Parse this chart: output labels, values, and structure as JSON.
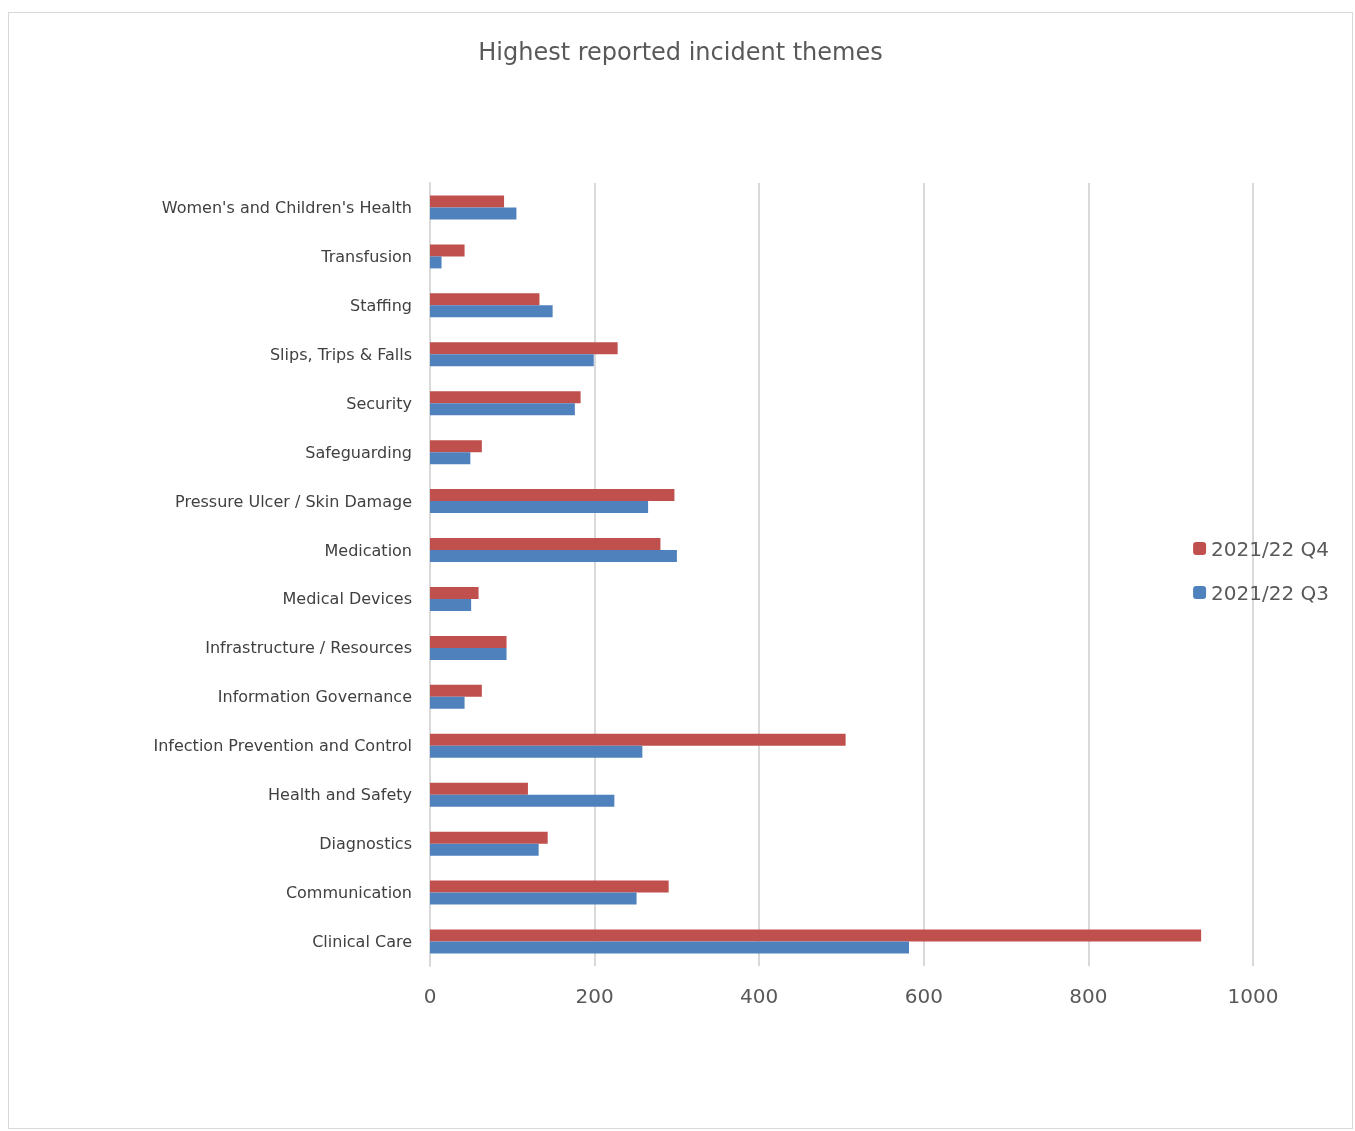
{
  "chart_data": {
    "type": "bar",
    "orientation": "horizontal",
    "title": "Highest reported incident themes",
    "categories": [
      "Women's and Children's Health",
      "Transfusion",
      "Staffing",
      "Slips, Trips & Falls",
      "Security",
      "Safeguarding",
      "Pressure Ulcer / Skin Damage",
      "Medication",
      "Medical Devices",
      "Infrastructure / Resources",
      "Information Governance",
      "Infection Prevention and Control",
      "Health and Safety",
      "Diagnostics",
      "Communication",
      "Clinical Care"
    ],
    "series": [
      {
        "name": "2021/22 Q4",
        "color": "#c0504d",
        "values": [
          90,
          42,
          133,
          228,
          183,
          63,
          297,
          280,
          59,
          93,
          63,
          505,
          119,
          143,
          290,
          937
        ]
      },
      {
        "name": "2021/22 Q3",
        "color": "#4f81bd",
        "values": [
          105,
          14,
          149,
          199,
          176,
          49,
          265,
          300,
          50,
          93,
          42,
          258,
          224,
          132,
          251,
          582
        ]
      }
    ],
    "xlim": [
      0,
      1000
    ],
    "xticks": [
      0,
      200,
      400,
      600,
      800,
      1000
    ],
    "grid": "x",
    "legend": "right"
  }
}
